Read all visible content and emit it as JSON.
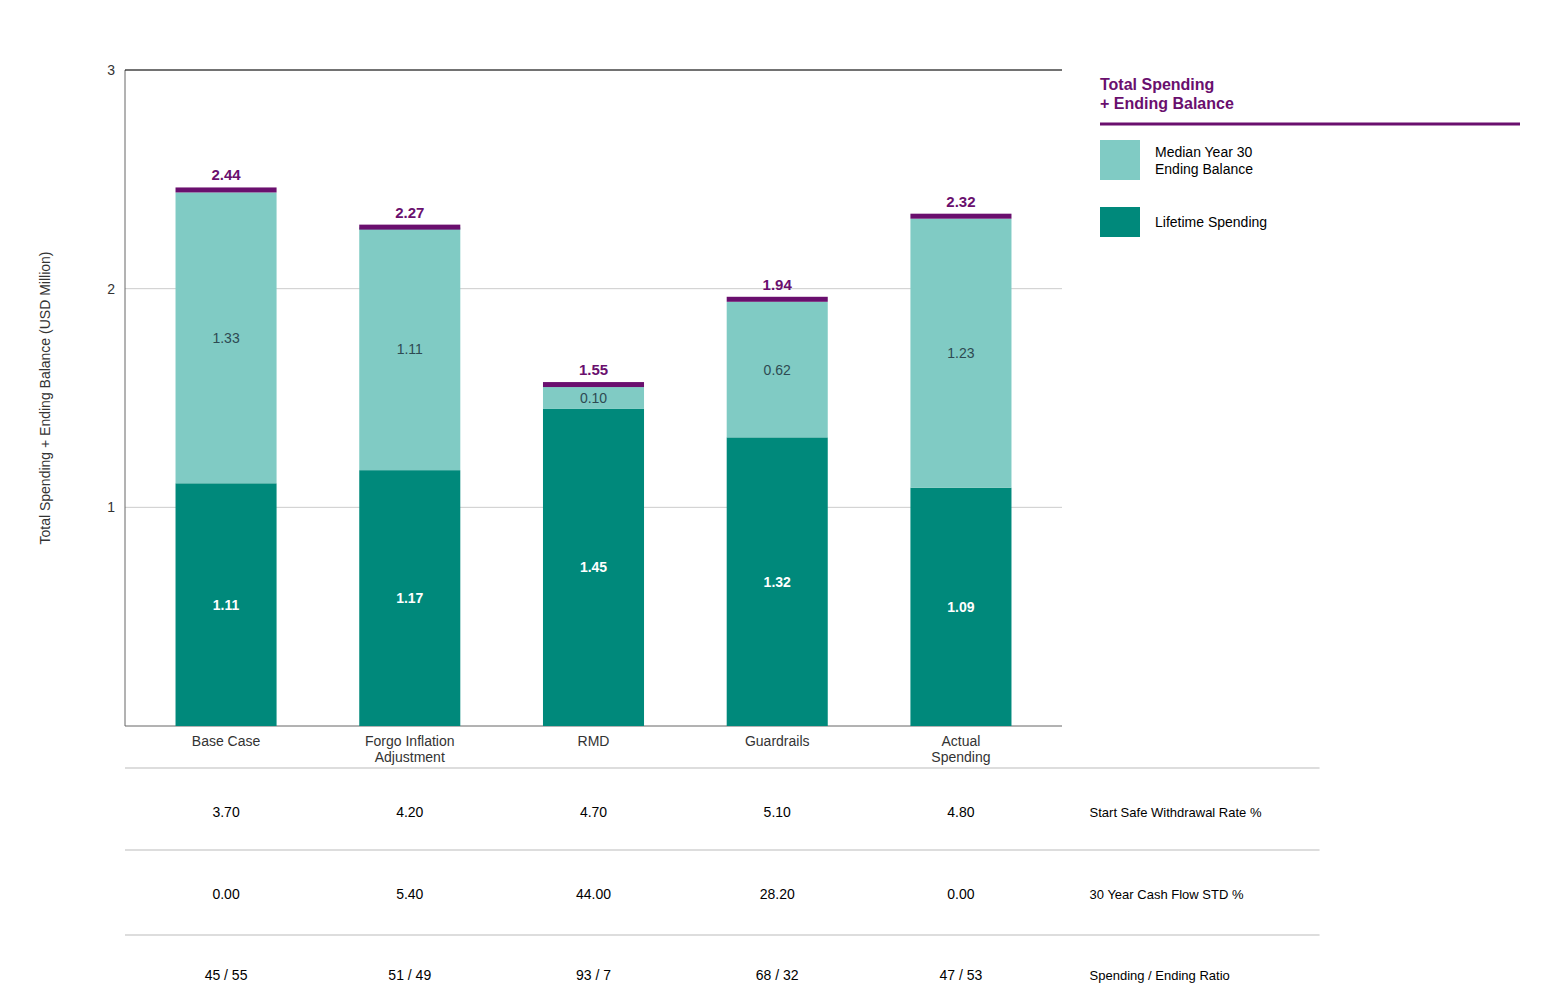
{
  "chart_data": {
    "type": "bar",
    "stacked": true,
    "categories": [
      "Base Case",
      "Forgo Inflation\nAdjustment",
      "RMD",
      "Guardrails",
      "Actual\nSpending"
    ],
    "series": [
      {
        "name": "Lifetime Spending",
        "color": "#00897B",
        "values": [
          1.11,
          1.17,
          1.45,
          1.32,
          1.09
        ]
      },
      {
        "name": "Median Year 30\nEnding Balance",
        "color": "#80CBC4",
        "values": [
          1.33,
          1.11,
          0.1,
          0.62,
          1.23
        ]
      }
    ],
    "totals": {
      "name": "Total Spending\n+ Ending Balance",
      "color": "#6A0F6E",
      "values": [
        2.44,
        2.27,
        1.55,
        1.94,
        2.32
      ]
    },
    "ylabel": "Total Spending + Ending Balance (USD Million)",
    "ylim": [
      0,
      3.0
    ],
    "yticks": [
      1,
      2,
      3
    ],
    "grid": true,
    "legend": "upper right",
    "data_labels": true,
    "table": [
      {
        "label": "Start Safe Withdrawal Rate %",
        "values": [
          "3.70",
          "4.20",
          "4.70",
          "5.10",
          "4.80"
        ]
      },
      {
        "label": "30 Year Cash Flow STD %",
        "values": [
          "0.00",
          "5.40",
          "44.00",
          "28.20",
          "0.00"
        ]
      },
      {
        "label": "Spending / Ending Ratio",
        "values": [
          "45 / 55",
          "51 / 49",
          "93 / 7",
          "68 / 32",
          "47 / 53"
        ]
      }
    ]
  }
}
